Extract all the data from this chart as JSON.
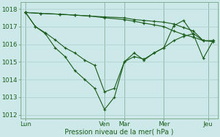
{
  "xlabel": "Pression niveau de la mer( hPa )",
  "background_color": "#cce8e8",
  "grid_color": "#aacccc",
  "line_color": "#1a5c1a",
  "vline_color": "#558855",
  "ylim": [
    1011.8,
    1018.4
  ],
  "yticks": [
    1012,
    1013,
    1014,
    1015,
    1016,
    1017,
    1018
  ],
  "xlim": [
    0,
    20
  ],
  "xtick_positions": [
    0.5,
    8.5,
    10.5,
    14.5,
    19.0
  ],
  "xtick_labels": [
    "Lun",
    "Ven",
    "Mar",
    "Mer",
    "Jeu"
  ],
  "vline_positions": [
    0.5,
    8.5,
    10.5,
    14.5,
    19.0
  ],
  "series": [
    {
      "name": "line1_flat_top",
      "x": [
        0.5,
        2.0,
        4.0,
        5.5,
        7.0,
        8.5,
        10.5,
        11.5,
        12.5,
        13.5,
        14.5,
        15.5,
        16.5,
        17.5,
        18.5,
        19.5
      ],
      "y": [
        1017.8,
        1017.75,
        1017.7,
        1017.65,
        1017.6,
        1017.55,
        1017.5,
        1017.4,
        1017.35,
        1017.3,
        1017.25,
        1017.15,
        1016.95,
        1016.75,
        1016.2,
        1016.2
      ]
    },
    {
      "name": "line2_flat",
      "x": [
        0.5,
        2.0,
        4.0,
        5.5,
        7.0,
        8.5,
        10.5,
        11.5,
        12.5,
        13.5,
        14.5,
        15.5,
        16.5,
        17.5,
        18.5,
        19.5
      ],
      "y": [
        1017.8,
        1017.75,
        1017.7,
        1017.65,
        1017.6,
        1017.5,
        1017.4,
        1017.3,
        1017.2,
        1017.1,
        1017.0,
        1016.75,
        1016.55,
        1016.4,
        1016.2,
        1016.15
      ]
    },
    {
      "name": "line3_medium_dip",
      "x": [
        0.5,
        1.5,
        2.5,
        3.5,
        4.5,
        5.5,
        6.5,
        7.5,
        8.5,
        9.5,
        10.5,
        11.5,
        12.5,
        13.5,
        14.5,
        15.5,
        16.5,
        17.5,
        18.5,
        19.5
      ],
      "y": [
        1017.8,
        1017.0,
        1016.65,
        1016.25,
        1015.8,
        1015.5,
        1015.1,
        1014.8,
        1013.3,
        1013.5,
        1015.0,
        1015.3,
        1015.15,
        1015.5,
        1015.8,
        1016.2,
        1016.45,
        1016.6,
        1016.2,
        1016.2
      ]
    },
    {
      "name": "line4_deep_dip",
      "x": [
        0.5,
        1.5,
        2.5,
        3.5,
        4.5,
        5.5,
        6.5,
        7.5,
        8.5,
        9.5,
        10.5,
        11.5,
        12.5,
        13.5,
        14.5,
        15.5,
        16.5,
        17.5,
        18.5,
        19.5
      ],
      "y": [
        1017.8,
        1017.0,
        1016.6,
        1015.8,
        1015.3,
        1014.5,
        1014.0,
        1013.5,
        1012.3,
        1013.0,
        1015.0,
        1015.5,
        1015.1,
        1015.5,
        1015.8,
        1017.05,
        1017.35,
        1016.55,
        1015.2,
        1016.2
      ]
    }
  ]
}
